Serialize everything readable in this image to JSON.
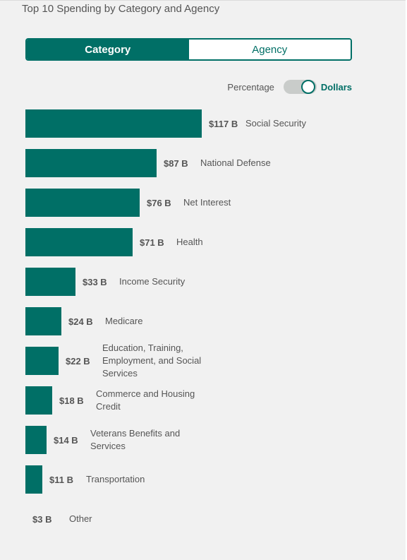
{
  "title": "Top 10 Spending by Category and Agency",
  "tabs": [
    {
      "label": "Category",
      "active": true
    },
    {
      "label": "Agency",
      "active": false
    }
  ],
  "unit_toggle": {
    "left_label": "Percentage",
    "right_label": "Dollars",
    "selected": "Dollars"
  },
  "colors": {
    "accent": "#006f66",
    "background": "#f1f1f1"
  },
  "chart_data": {
    "type": "bar",
    "orientation": "horizontal",
    "categories": [
      "Social Security",
      "National Defense",
      "Net Interest",
      "Health",
      "Income Security",
      "Medicare",
      "Education, Training, Employment, and Social Services",
      "Commerce and Housing Credit",
      "Veterans Benefits and Services",
      "Transportation",
      "Other"
    ],
    "values": [
      117,
      87,
      76,
      71,
      33,
      24,
      22,
      18,
      14,
      11,
      3
    ],
    "value_labels": [
      "$117 B",
      "$87 B",
      "$76 B",
      "$71 B",
      "$33 B",
      "$24 B",
      "$22 B",
      "$18 B",
      "$14 B",
      "$11 B",
      "$3 B"
    ]
  }
}
